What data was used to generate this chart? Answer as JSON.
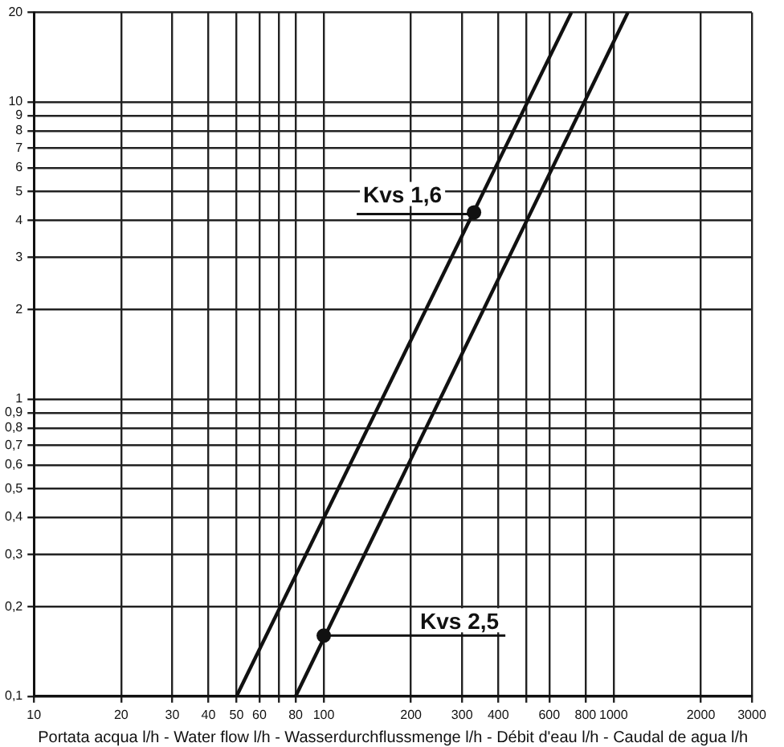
{
  "chart_data": {
    "type": "line",
    "xlabel": "Portata acqua l/h - Water flow l/h - Wasserdurchflussmenge l/h - Débit d'eau l/h - Caudal de agua l/h",
    "series": [
      {
        "color": "#111111",
        "x": [
          50,
          715
        ],
        "values": [
          0.1,
          20
        ]
      },
      {
        "color": "#111111",
        "x": [
          80,
          1120
        ],
        "values": [
          0.1,
          20
        ]
      }
    ],
    "annotations": [
      {
        "text": "Kvs 1,6",
        "x": 330,
        "y": 4.25
      },
      {
        "text": "Kvs 2,5",
        "x": 100,
        "y": 0.16
      }
    ],
    "log": "xy",
    "xlim": [
      10,
      3000
    ],
    "ylim": [
      0.1,
      20
    ],
    "xticks": [
      10,
      20,
      30,
      40,
      50,
      60,
      {
        "value": 70,
        "label": null
      },
      80,
      100,
      200,
      300,
      400,
      {
        "value": 500,
        "label": null
      },
      600,
      800,
      1000,
      2000,
      3000
    ],
    "yticks": [
      {
        "value": 0.1,
        "label": "0,1"
      },
      {
        "value": 0.2,
        "label": "0,2"
      },
      {
        "value": 0.3,
        "label": "0,3"
      },
      {
        "value": 0.4,
        "label": "0,4"
      },
      {
        "value": 0.5,
        "label": "0,5"
      },
      {
        "value": 0.6,
        "label": "0,6"
      },
      {
        "value": 0.7,
        "label": "0,7"
      },
      {
        "value": 0.8,
        "label": "0,8"
      },
      {
        "value": 0.9,
        "label": "0,9"
      },
      1,
      2,
      3,
      4,
      5,
      6,
      7,
      8,
      9,
      10,
      20
    ],
    "grid": true,
    "marker": "none",
    "line_style": "solid",
    "legend": false
  }
}
